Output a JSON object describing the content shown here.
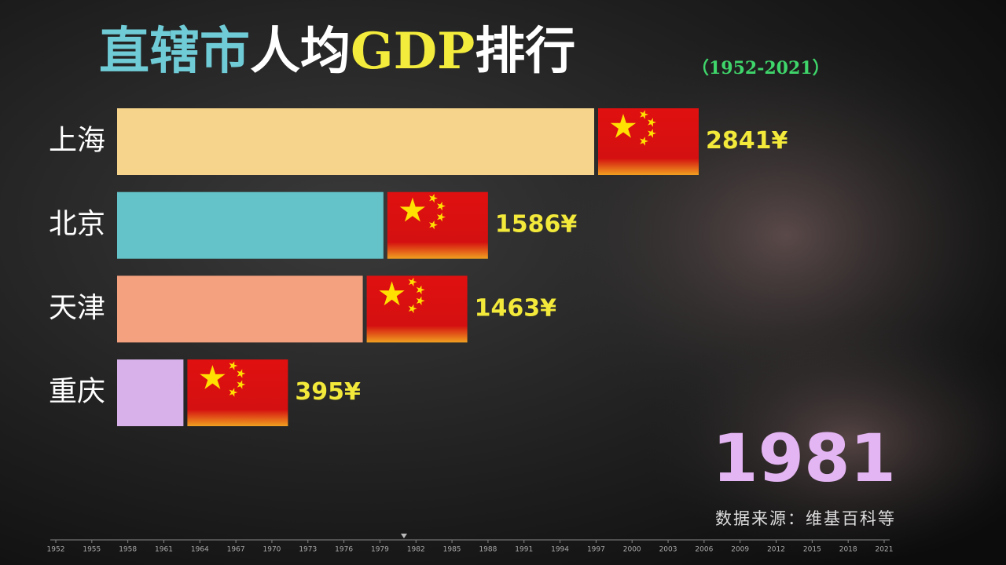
{
  "chart_data": {
    "type": "bar",
    "orientation": "horizontal",
    "title_segments": [
      {
        "text": "直辖市",
        "color": "#6fcbd6"
      },
      {
        "text": "人均",
        "color": "#ffffff"
      },
      {
        "text": "GDP",
        "color": "#f4ec3c"
      },
      {
        "text": "排行",
        "color": "#ffffff"
      }
    ],
    "subtitle": "（1952-2021）",
    "categories": [
      "上海",
      "北京",
      "天津",
      "重庆"
    ],
    "values": [
      2841,
      1586,
      1463,
      395
    ],
    "value_labels": [
      "2841¥",
      "1586¥",
      "1463¥",
      "395¥"
    ],
    "colors": [
      "#f6d48c",
      "#63c3c8",
      "#f4a17f",
      "#d8b1ea"
    ],
    "year": 1981,
    "source": "数据来源：维基百科等",
    "timeline": {
      "xlim": [
        1952,
        2021
      ],
      "xticks": [
        1952,
        1955,
        1958,
        1961,
        1964,
        1967,
        1970,
        1973,
        1976,
        1979,
        1982,
        1985,
        1988,
        1991,
        1994,
        1997,
        2000,
        2003,
        2006,
        2009,
        2012,
        2015,
        2018,
        2021
      ]
    }
  }
}
